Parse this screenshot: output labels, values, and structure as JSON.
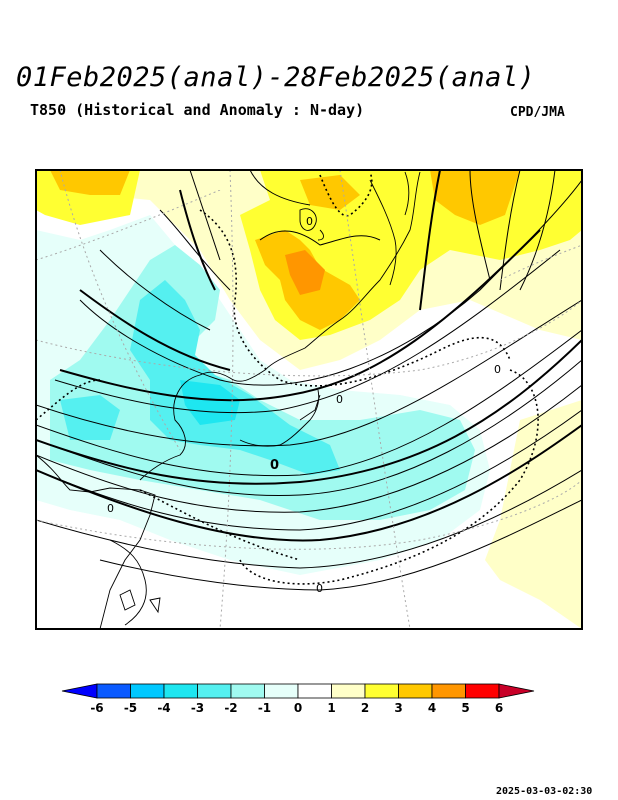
{
  "header": {
    "title": "01Feb2025(anal)-28Feb2025(anal)",
    "subtitle": "T850 (Historical and Anomaly : N-day)",
    "credit": "CPD/JMA"
  },
  "map": {
    "contour_labels": [
      "0",
      "0",
      "0",
      "0",
      "0",
      "0"
    ]
  },
  "colorbar": {
    "tick_labels": [
      "-6",
      "-5",
      "-4",
      "-3",
      "-2",
      "-1",
      "0",
      "1",
      "2",
      "3",
      "4",
      "5",
      "6"
    ],
    "colors": [
      "#0000ff",
      "#0a5aff",
      "#00c8ff",
      "#1ee6f0",
      "#55f0f0",
      "#a0faf0",
      "#e6fffa",
      "#ffffff",
      "#ffffc8",
      "#ffff32",
      "#ffc800",
      "#ff9600",
      "#ff0000",
      "#c80028"
    ]
  },
  "footer": {
    "timestamp": "2025-03-03-02:30"
  }
}
